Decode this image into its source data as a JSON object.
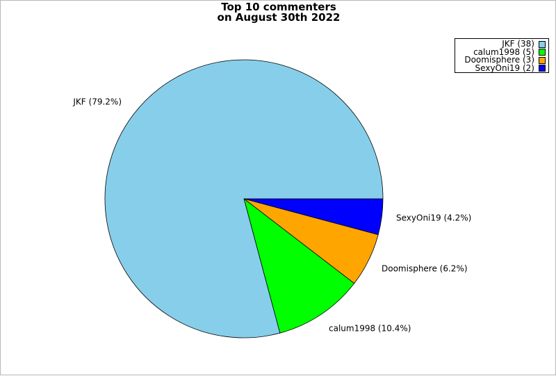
{
  "chart_data": {
    "type": "pie",
    "title": "Top 10 commenters",
    "subtitle": "on August 30th 2022",
    "slices": [
      {
        "name": "JKF",
        "count": 38,
        "percent": 79.2,
        "color": "#87ceeb"
      },
      {
        "name": "calum1998",
        "count": 5,
        "percent": 10.4,
        "color": "#00ff00"
      },
      {
        "name": "Doomisphere",
        "count": 3,
        "percent": 6.2,
        "color": "#ffa500"
      },
      {
        "name": "SexyOni19",
        "count": 2,
        "percent": 4.2,
        "color": "#0000ff"
      }
    ],
    "legend": {
      "placement": "top-right",
      "entries": [
        "JKF (38)",
        "calum1998 (5)",
        "Doomisphere (3)",
        "SexyOni19 (2)"
      ]
    },
    "slice_labels": [
      "JKF (79.2%)",
      "calum1998 (10.4%)",
      "Doomisphere (6.2%)",
      "SexyOni19 (4.2%)"
    ]
  }
}
